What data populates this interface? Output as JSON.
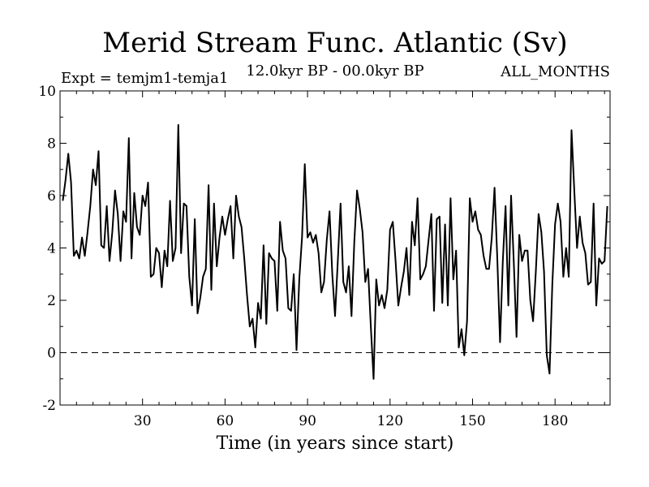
{
  "chart_data": {
    "type": "line",
    "title": "Merid Stream Func. Atlantic (Sv)",
    "subtitle_left": "Expt = temjm1-temja1",
    "subtitle_center": "12.0kyr BP - 00.0kyr BP",
    "subtitle_right": "ALL_MONTHS",
    "xlabel": "Time (in years since start)",
    "ylabel": "",
    "xlim": [
      0,
      200
    ],
    "ylim": [
      -2,
      10
    ],
    "xticks": [
      30,
      60,
      90,
      120,
      150,
      180
    ],
    "yticks": [
      -2,
      0,
      2,
      4,
      6,
      8,
      10
    ],
    "reference_line": {
      "value": 0,
      "style": "dashed"
    },
    "series": [
      {
        "name": "Merid Stream Func. Atlantic",
        "x_start": 1,
        "x_step": 1,
        "values": [
          5.8,
          6.6,
          7.6,
          6.5,
          3.7,
          3.9,
          3.6,
          4.4,
          3.7,
          4.6,
          5.6,
          7.0,
          6.4,
          7.7,
          4.1,
          4.0,
          5.6,
          3.5,
          4.6,
          6.2,
          5.3,
          3.5,
          5.4,
          5.0,
          8.2,
          3.6,
          6.1,
          4.8,
          4.5,
          6.0,
          5.6,
          6.5,
          2.9,
          3.0,
          4.0,
          3.8,
          2.5,
          3.9,
          3.3,
          5.8,
          3.5,
          4.0,
          8.7,
          3.8,
          5.7,
          5.6,
          2.9,
          1.8,
          5.1,
          1.5,
          2.1,
          2.9,
          3.2,
          6.4,
          2.4,
          5.7,
          3.3,
          4.4,
          5.2,
          4.5,
          5.1,
          5.6,
          3.6,
          6.0,
          5.2,
          4.8,
          3.6,
          2.2,
          1.0,
          1.3,
          0.2,
          1.9,
          1.3,
          4.1,
          1.1,
          3.8,
          3.6,
          3.5,
          1.6,
          5.0,
          3.9,
          3.6,
          1.7,
          1.6,
          3.0,
          0.1,
          2.8,
          4.4,
          7.2,
          4.4,
          4.6,
          4.2,
          4.5,
          3.8,
          2.3,
          2.7,
          4.3,
          5.4,
          3.0,
          1.4,
          3.5,
          5.7,
          2.7,
          2.3,
          3.3,
          1.4,
          4.2,
          6.2,
          5.5,
          4.6,
          2.7,
          3.2,
          1.0,
          -1.0,
          2.8,
          1.8,
          2.2,
          1.7,
          2.4,
          4.7,
          5.0,
          3.5,
          1.8,
          2.5,
          3.1,
          4.0,
          2.2,
          5.0,
          4.1,
          5.9,
          2.8,
          3.0,
          3.3,
          4.3,
          5.3,
          1.6,
          5.1,
          5.2,
          1.9,
          4.9,
          1.8,
          5.9,
          2.8,
          3.9,
          0.2,
          0.9,
          -0.1,
          1.2,
          5.9,
          5.0,
          5.4,
          4.7,
          4.5,
          3.7,
          3.2,
          3.2,
          4.4,
          6.3,
          3.6,
          0.4,
          3.5,
          5.6,
          1.8,
          6.0,
          3.4,
          0.6,
          4.5,
          3.5,
          3.9,
          3.9,
          2.0,
          1.2,
          3.1,
          5.3,
          4.6,
          3.1,
          -0.1,
          -0.8,
          2.6,
          4.9,
          5.7,
          5.0,
          2.9,
          4.0,
          2.9,
          8.5,
          6.2,
          4.0,
          5.2,
          4.2,
          3.8,
          2.6,
          2.7,
          5.7,
          1.8,
          3.6,
          3.4,
          3.5,
          5.6
        ]
      }
    ]
  }
}
